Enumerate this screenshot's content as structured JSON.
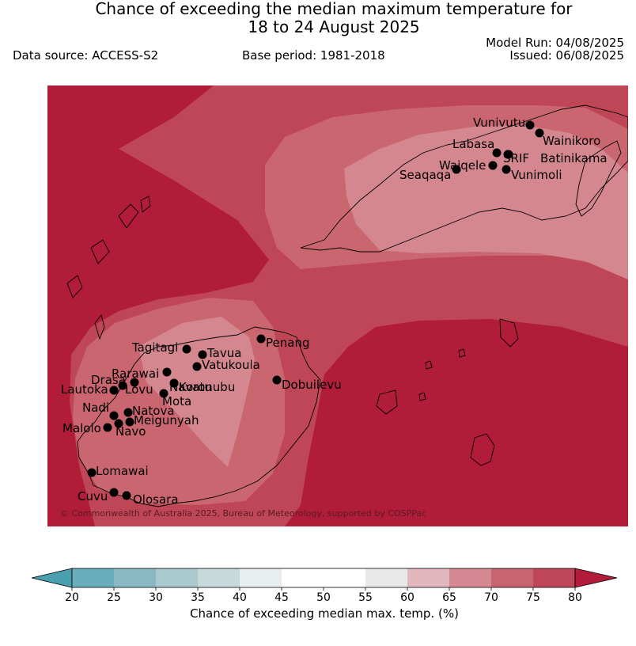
{
  "header": {
    "title_line1": "Chance of exceeding the median maximum temperature for",
    "title_line2": "18 to 24 August 2025",
    "data_source": "Data source: ACCESS-S2",
    "base_period": "Base period: 1981-2018",
    "model_run": "Model Run: 04/08/2025",
    "issued": "Issued: 06/08/2025"
  },
  "map": {
    "copyright": "© Commonwealth of Australia 2025, Bureau of Meteorology, supported by COSPPac",
    "stations": [
      {
        "name": "Vunivutu",
        "color": "#000000"
      },
      {
        "name": "Wainikoro",
        "color": "#000000"
      },
      {
        "name": "Labasa",
        "color": "#000000"
      },
      {
        "name": "SRIF",
        "color": "#000000"
      },
      {
        "name": "Batinikama",
        "color": "#000000"
      },
      {
        "name": "Waiqele",
        "color": "#000000"
      },
      {
        "name": "Seaqaqa",
        "color": "#000000"
      },
      {
        "name": "Vunimoli",
        "color": "#000000"
      },
      {
        "name": "Tagitagi",
        "color": "#000000"
      },
      {
        "name": "Tavua",
        "color": "#000000"
      },
      {
        "name": "Penang",
        "color": "#000000"
      },
      {
        "name": "Vatukoula",
        "color": "#000000"
      },
      {
        "name": "Rarawai",
        "color": "#000000"
      },
      {
        "name": "Navatu",
        "color": "#000000"
      },
      {
        "name": "Drasa",
        "color": "#000000"
      },
      {
        "name": "Koronubu",
        "color": "#000000"
      },
      {
        "name": "Dobuilevu",
        "color": "#000000"
      },
      {
        "name": "Lautoka",
        "color": "#000000"
      },
      {
        "name": "Lovu",
        "color": "#000000"
      },
      {
        "name": "Mota",
        "color": "#000000"
      },
      {
        "name": "Natova",
        "color": "#000000"
      },
      {
        "name": "Nadi",
        "color": "#000000"
      },
      {
        "name": "Meigunyah",
        "color": "#000000"
      },
      {
        "name": "Malolo",
        "color": "#000000"
      },
      {
        "name": "Navo",
        "color": "#000000"
      },
      {
        "name": "Lomawai",
        "color": "#000000"
      },
      {
        "name": "Cuvu",
        "color": "#000000"
      },
      {
        "name": "Olosara",
        "color": "#000000"
      }
    ]
  },
  "colorbar": {
    "label": "Chance of exceeding median max. temp. (%)",
    "ticks": [
      "20",
      "25",
      "30",
      "35",
      "40",
      "45",
      "50",
      "55",
      "60",
      "65",
      "70",
      "75",
      "80"
    ],
    "under_color": "#4a9fae",
    "over_color": "#b31b3a",
    "colors": [
      "#6aaebd",
      "#8ab9c5",
      "#a9c9cf",
      "#c8d9dc",
      "#e8eef0",
      "#ffffff",
      "#ffffff",
      "#e9e9e9",
      "#e3b7be",
      "#d48992",
      "#c8646f",
      "#be4656"
    ]
  },
  "legend_fills": {
    "band_60_65": "#d4878e",
    "band_65_70": "#ca666f",
    "band_70_75": "#be4657",
    "band_75_80": "#b11c39"
  }
}
